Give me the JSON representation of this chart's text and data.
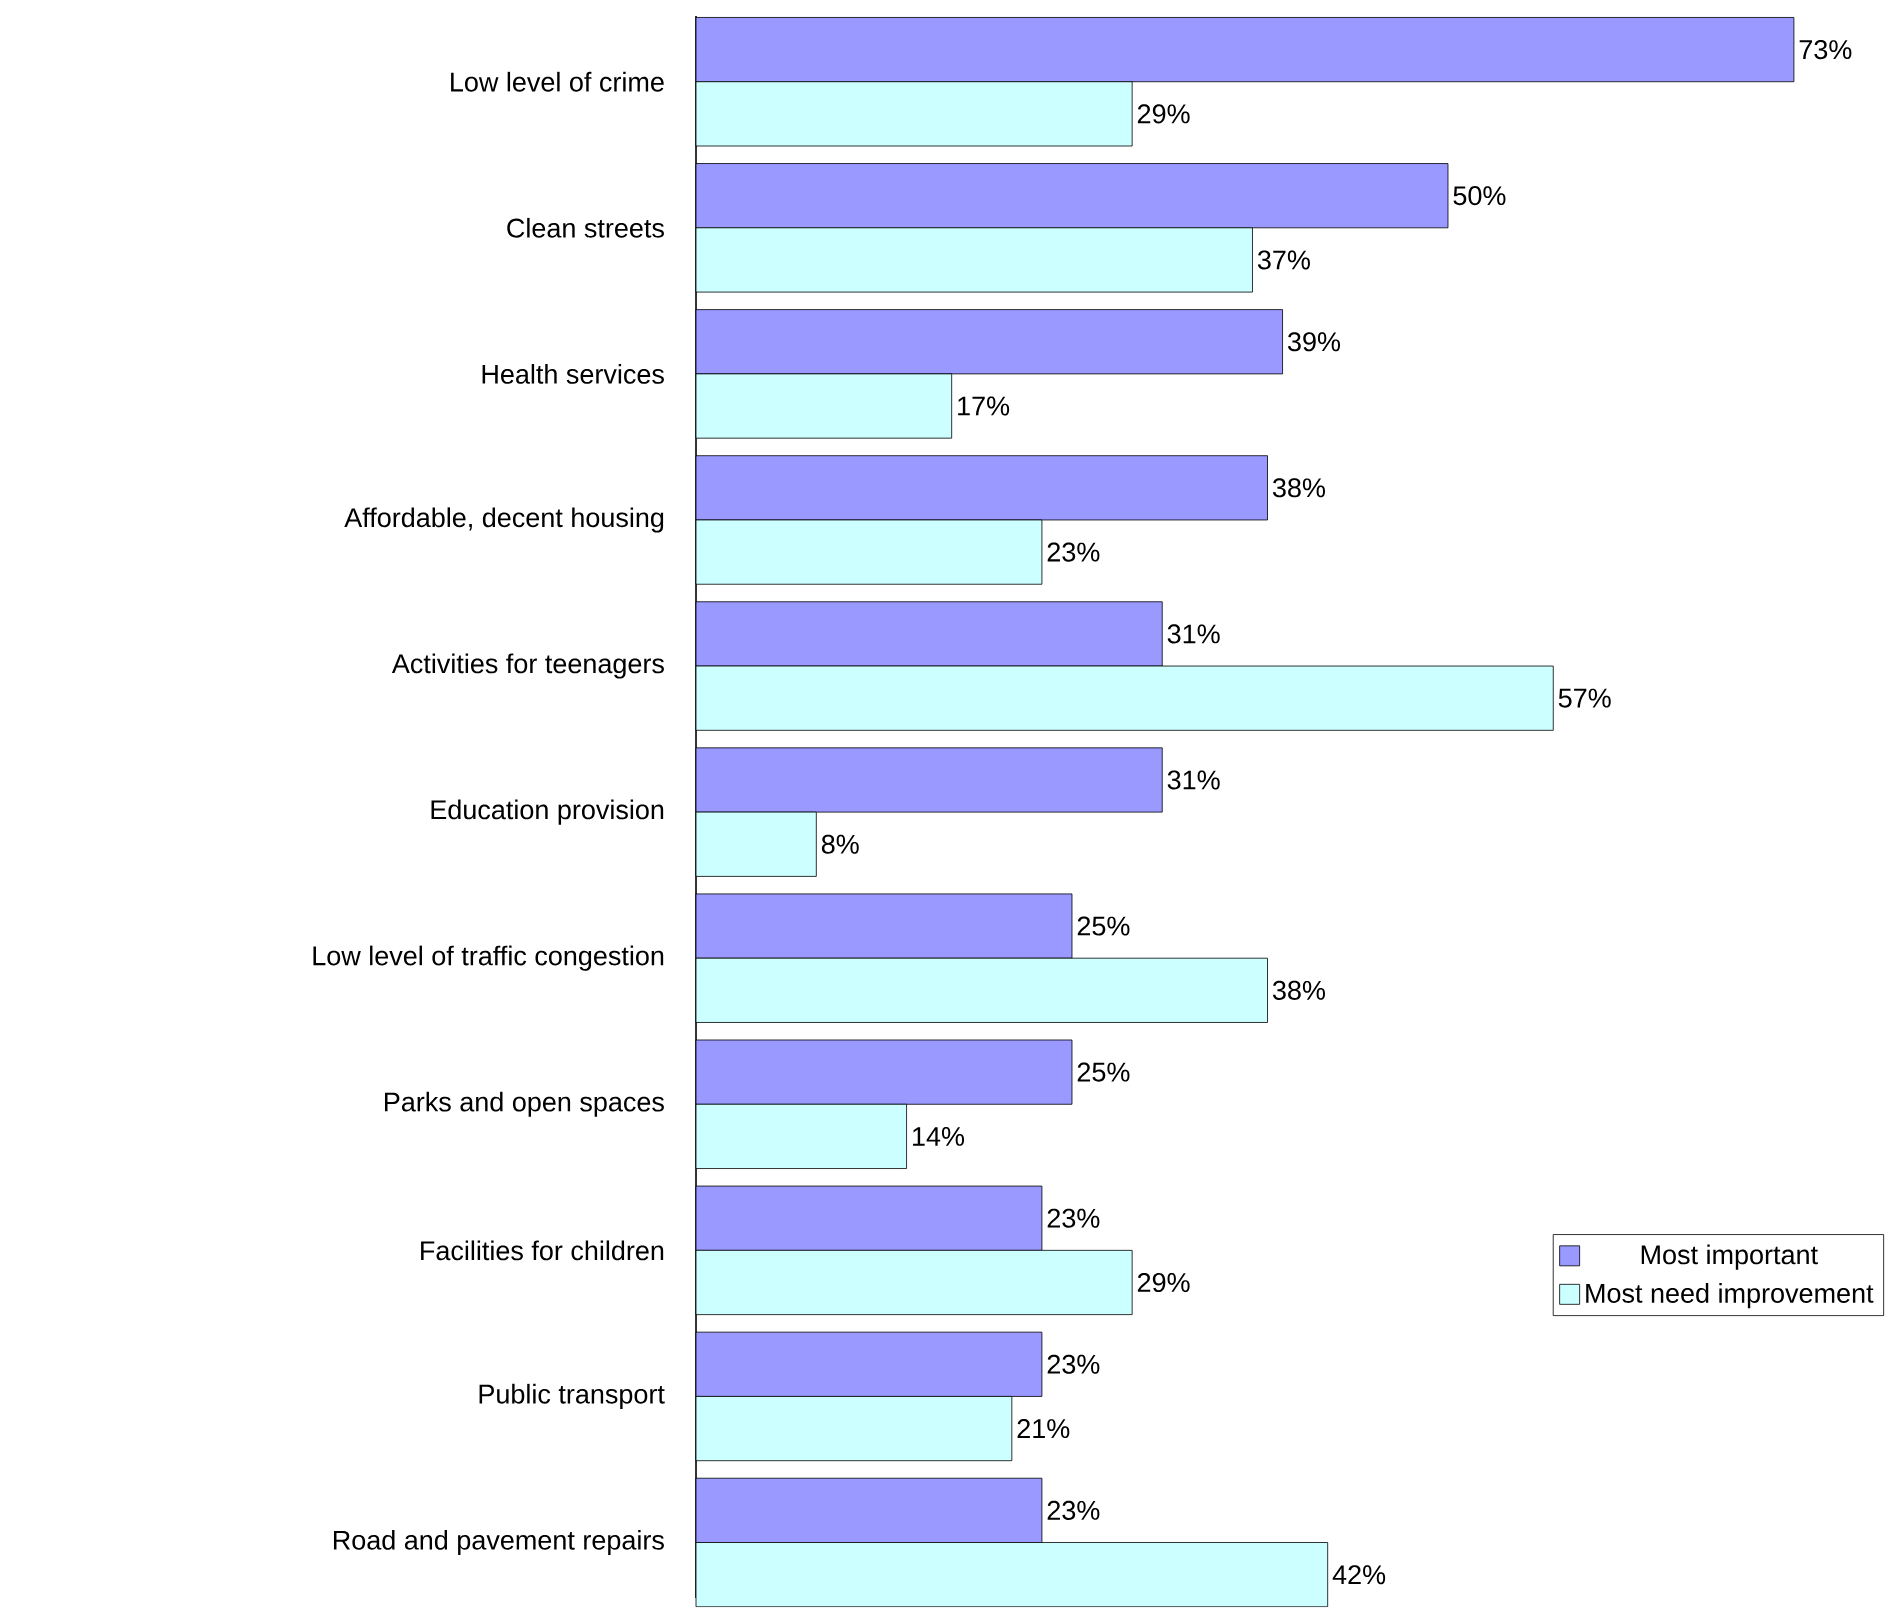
{
  "chart_data": {
    "type": "bar",
    "orientation": "horizontal",
    "categories": [
      "Low level of crime",
      "Clean streets",
      "Health services",
      "Affordable, decent housing",
      "Activities for teenagers",
      "Education provision",
      "Low level of traffic congestion",
      "Parks and open spaces",
      "Facilities for children",
      "Public transport",
      "Road and pavement repairs"
    ],
    "series": [
      {
        "name": "Most important",
        "color": "#9999ff",
        "values": [
          73,
          50,
          39,
          38,
          31,
          31,
          25,
          25,
          23,
          23,
          23
        ],
        "value_labels": [
          "73%",
          "50%",
          "39%",
          "38%",
          "31%",
          "31%",
          "25%",
          "25%",
          "23%",
          "23%",
          "23%"
        ]
      },
      {
        "name": "Most need improvement",
        "color": "#ccffff",
        "values": [
          29,
          37,
          17,
          23,
          57,
          8,
          38,
          14,
          29,
          21,
          42
        ],
        "value_labels": [
          "29%",
          "37%",
          "17%",
          "23%",
          "57%",
          "8%",
          "38%",
          "14%",
          "29%",
          "21%",
          "42%"
        ]
      }
    ],
    "legend": "right"
  }
}
